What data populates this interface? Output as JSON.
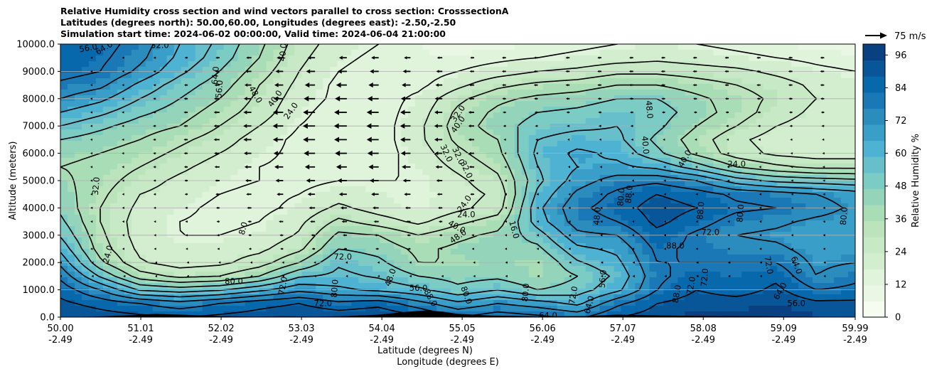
{
  "title_lines": [
    "Relative Humidity cross section and wind vectors parallel to cross section: CrosssectionA",
    "Latitudes (degrees north): 50.00,60.00, Longitudes (degrees east): -2.50,-2.50",
    "Simulation start time: 2024-06-02 00:00:00, Valid time: 2024-06-04 21:00:00"
  ],
  "quiver_key_label": "75 m/s",
  "colors": {
    "rh_levels": [
      "#f7fcf0",
      "#eaf7e4",
      "#e0f3db",
      "#d3eece",
      "#c8e9c5",
      "#bbe4bc",
      "#a8ddb5",
      "#94d4bb",
      "#7bccc4",
      "#66bfca",
      "#4eb3d3",
      "#3a9fc8",
      "#2b8cbe",
      "#1978b5",
      "#0868ac",
      "#085697",
      "#084081"
    ],
    "contour": "#000000",
    "terrain": "#000000",
    "grid": "#b0b0b0"
  },
  "chart_data": {
    "type": "heatmap",
    "subtype": "filled contour cross-section with wind vectors and line contours",
    "xlabel_line1": "Latitude (degrees N)",
    "xlabel_line2": "Longitude (degrees E)",
    "ylabel": "Altitude (meters)",
    "ylim": [
      0,
      10000
    ],
    "xlim": [
      50.0,
      59.99
    ],
    "y_ticks": [
      "0.0",
      "1000.0",
      "2000.0",
      "3000.0",
      "4000.0",
      "5000.0",
      "6000.0",
      "7000.0",
      "8000.0",
      "9000.0",
      "10000.0"
    ],
    "y_tick_values": [
      0,
      1000,
      2000,
      3000,
      4000,
      5000,
      6000,
      7000,
      8000,
      9000,
      10000
    ],
    "x_ticks": [
      {
        "lat": "50.00",
        "lon": "-2.49",
        "value": 50.0
      },
      {
        "lat": "51.01",
        "lon": "-2.49",
        "value": 51.01
      },
      {
        "lat": "52.02",
        "lon": "-2.49",
        "value": 52.02
      },
      {
        "lat": "53.03",
        "lon": "-2.49",
        "value": 53.03
      },
      {
        "lat": "54.04",
        "lon": "-2.49",
        "value": 54.04
      },
      {
        "lat": "55.05",
        "lon": "-2.49",
        "value": 55.05
      },
      {
        "lat": "56.06",
        "lon": "-2.49",
        "value": 56.06
      },
      {
        "lat": "57.07",
        "lon": "-2.49",
        "value": 57.07
      },
      {
        "lat": "58.08",
        "lon": "-2.49",
        "value": 58.08
      },
      {
        "lat": "59.09",
        "lon": "-2.49",
        "value": 59.09
      },
      {
        "lat": "59.99",
        "lon": "-2.49",
        "value": 59.99
      }
    ],
    "grid": "horizontal only",
    "colorbar": {
      "label": "Relative Humidity %",
      "range": [
        0,
        100
      ],
      "ticks": [
        "0",
        "12",
        "24",
        "36",
        "48",
        "60",
        "72",
        "84",
        "96"
      ],
      "tick_values": [
        0,
        12,
        24,
        36,
        48,
        60,
        72,
        84,
        96
      ],
      "levels": 17
    },
    "rh_field": {
      "columns": [
        "50.0",
        "50.5",
        "51.0",
        "51.5",
        "52.0",
        "52.5",
        "53.0",
        "53.5",
        "54.0",
        "54.5",
        "55.0",
        "55.5",
        "56.0",
        "56.5",
        "57.0",
        "57.5",
        "58.0",
        "58.5",
        "59.0",
        "59.5",
        "60.0"
      ],
      "altitudes": [
        0,
        500,
        1000,
        1500,
        2000,
        2500,
        3000,
        3500,
        4000,
        4500,
        5000,
        5500,
        6000,
        6500,
        7000,
        7500,
        8000,
        8500,
        9000,
        9500,
        10000
      ],
      "values": [
        [
          95,
          92,
          90,
          88,
          90,
          92,
          95,
          94,
          96,
          90,
          80,
          85,
          82,
          78,
          88,
          92,
          96,
          96,
          97,
          95,
          95
        ],
        [
          90,
          85,
          80,
          75,
          80,
          85,
          88,
          82,
          85,
          75,
          66,
          72,
          68,
          62,
          78,
          88,
          92,
          92,
          94,
          90,
          90
        ],
        [
          85,
          72,
          55,
          52,
          55,
          62,
          70,
          66,
          62,
          58,
          50,
          56,
          48,
          52,
          62,
          80,
          88,
          84,
          90,
          80,
          82
        ],
        [
          78,
          55,
          36,
          30,
          32,
          40,
          55,
          58,
          55,
          48,
          45,
          46,
          40,
          48,
          58,
          78,
          84,
          82,
          86,
          72,
          78
        ],
        [
          70,
          42,
          25,
          20,
          22,
          28,
          40,
          55,
          50,
          40,
          40,
          42,
          40,
          55,
          62,
          80,
          80,
          80,
          80,
          70,
          72
        ],
        [
          62,
          36,
          22,
          18,
          20,
          22,
          30,
          48,
          45,
          38,
          42,
          45,
          46,
          62,
          66,
          82,
          78,
          75,
          74,
          68,
          70
        ],
        [
          55,
          34,
          20,
          16,
          16,
          18,
          25,
          42,
          40,
          32,
          38,
          42,
          52,
          70,
          72,
          86,
          78,
          72,
          70,
          66,
          68
        ],
        [
          50,
          32,
          20,
          16,
          14,
          16,
          22,
          34,
          28,
          22,
          30,
          36,
          60,
          76,
          80,
          90,
          84,
          76,
          74,
          70,
          68
        ],
        [
          46,
          32,
          22,
          18,
          14,
          14,
          18,
          26,
          20,
          16,
          22,
          28,
          62,
          78,
          84,
          92,
          88,
          82,
          80,
          76,
          70
        ],
        [
          44,
          34,
          24,
          20,
          16,
          14,
          16,
          20,
          18,
          16,
          20,
          26,
          58,
          74,
          82,
          88,
          84,
          78,
          76,
          72,
          68
        ],
        [
          42,
          36,
          28,
          22,
          18,
          16,
          14,
          16,
          16,
          16,
          22,
          30,
          54,
          68,
          76,
          78,
          72,
          60,
          54,
          52,
          50
        ],
        [
          40,
          38,
          32,
          26,
          20,
          16,
          14,
          14,
          14,
          18,
          26,
          34,
          56,
          64,
          66,
          62,
          52,
          40,
          34,
          30,
          30
        ],
        [
          42,
          40,
          36,
          30,
          24,
          18,
          14,
          12,
          12,
          20,
          30,
          38,
          58,
          66,
          62,
          50,
          38,
          28,
          22,
          20,
          20
        ],
        [
          48,
          44,
          40,
          34,
          28,
          20,
          14,
          12,
          12,
          22,
          34,
          40,
          56,
          60,
          58,
          46,
          36,
          26,
          20,
          18,
          18
        ],
        [
          56,
          50,
          44,
          40,
          32,
          24,
          16,
          12,
          12,
          22,
          36,
          44,
          52,
          54,
          56,
          50,
          40,
          32,
          24,
          20,
          18
        ],
        [
          64,
          58,
          50,
          44,
          36,
          28,
          18,
          12,
          12,
          20,
          34,
          42,
          48,
          50,
          54,
          52,
          44,
          36,
          28,
          22,
          20
        ],
        [
          72,
          66,
          56,
          48,
          40,
          30,
          20,
          14,
          12,
          18,
          30,
          38,
          42,
          44,
          48,
          48,
          42,
          36,
          30,
          24,
          20
        ],
        [
          78,
          74,
          62,
          52,
          44,
          32,
          22,
          14,
          12,
          14,
          22,
          30,
          34,
          36,
          40,
          40,
          36,
          32,
          28,
          22,
          18
        ],
        [
          84,
          80,
          70,
          58,
          48,
          36,
          24,
          16,
          12,
          12,
          16,
          20,
          24,
          26,
          30,
          30,
          28,
          26,
          22,
          18,
          16
        ],
        [
          86,
          82,
          74,
          62,
          52,
          40,
          26,
          18,
          14,
          12,
          12,
          14,
          16,
          18,
          20,
          22,
          20,
          18,
          16,
          14,
          12
        ],
        [
          88,
          84,
          76,
          64,
          54,
          42,
          28,
          20,
          16,
          12,
          10,
          10,
          12,
          14,
          16,
          18,
          16,
          14,
          12,
          10,
          10
        ]
      ]
    },
    "contour_labels": [
      {
        "text": "56.0",
        "lat": 50.35,
        "alt": 9850,
        "rot": -10
      },
      {
        "text": "64.0",
        "lat": 50.55,
        "alt": 9850,
        "rot": -30
      },
      {
        "text": "32.0",
        "lat": 51.25,
        "alt": 9950,
        "rot": 0
      },
      {
        "text": "56.0",
        "lat": 52.0,
        "alt": 8350,
        "rot": -85
      },
      {
        "text": "64.0",
        "lat": 51.95,
        "alt": 8850,
        "rot": -85
      },
      {
        "text": "48.0",
        "lat": 52.45,
        "alt": 8150,
        "rot": 60
      },
      {
        "text": "40.0",
        "lat": 52.7,
        "alt": 8000,
        "rot": -55
      },
      {
        "text": "24.0",
        "lat": 52.9,
        "alt": 7550,
        "rot": -55
      },
      {
        "text": "40.0",
        "lat": 52.8,
        "alt": 9700,
        "rot": -85
      },
      {
        "text": "32.0",
        "lat": 50.45,
        "alt": 4800,
        "rot": -85
      },
      {
        "text": "8.0",
        "lat": 52.3,
        "alt": 3250,
        "rot": -75
      },
      {
        "text": "24.0",
        "lat": 50.6,
        "alt": 2300,
        "rot": -75
      },
      {
        "text": "72.0",
        "lat": 53.55,
        "alt": 2200,
        "rot": 0
      },
      {
        "text": "32.0",
        "lat": 55.0,
        "alt": 7450,
        "rot": -55
      },
      {
        "text": "40.0",
        "lat": 55.0,
        "alt": 7050,
        "rot": -55
      },
      {
        "text": "32.0",
        "lat": 54.85,
        "alt": 6000,
        "rot": 65
      },
      {
        "text": "32.0",
        "lat": 55.0,
        "alt": 5900,
        "rot": 65
      },
      {
        "text": "32.0",
        "lat": 55.1,
        "alt": 5400,
        "rot": 65
      },
      {
        "text": "24.0",
        "lat": 55.08,
        "alt": 4150,
        "rot": -55
      },
      {
        "text": "24.0",
        "lat": 55.1,
        "alt": 3750,
        "rot": 0
      },
      {
        "text": "40.0",
        "lat": 54.98,
        "alt": 3300,
        "rot": 30
      },
      {
        "text": "48.0",
        "lat": 55.0,
        "alt": 2950,
        "rot": -35
      },
      {
        "text": "16.0",
        "lat": 55.7,
        "alt": 3200,
        "rot": 75
      },
      {
        "text": "48.0",
        "lat": 56.75,
        "alt": 3700,
        "rot": -85
      },
      {
        "text": "48.0",
        "lat": 57.4,
        "alt": 7600,
        "rot": 85
      },
      {
        "text": "40.0",
        "lat": 57.35,
        "alt": 6300,
        "rot": 85
      },
      {
        "text": "40.0",
        "lat": 57.85,
        "alt": 5800,
        "rot": -60
      },
      {
        "text": "24.0",
        "lat": 58.5,
        "alt": 5600,
        "rot": 0
      },
      {
        "text": "80.0",
        "lat": 57.05,
        "alt": 4400,
        "rot": -85
      },
      {
        "text": "88.0",
        "lat": 57.15,
        "alt": 4500,
        "rot": -85
      },
      {
        "text": "88.0",
        "lat": 58.05,
        "alt": 3900,
        "rot": -85
      },
      {
        "text": "80.0",
        "lat": 58.55,
        "alt": 3800,
        "rot": -85
      },
      {
        "text": "72.0",
        "lat": 58.17,
        "alt": 3100,
        "rot": 0
      },
      {
        "text": "88.0",
        "lat": 57.73,
        "alt": 2600,
        "rot": 0
      },
      {
        "text": "80.0",
        "lat": 59.85,
        "alt": 3700,
        "rot": -85
      },
      {
        "text": "72.0",
        "lat": 58.9,
        "alt": 1900,
        "rot": 80
      },
      {
        "text": "64.0",
        "lat": 59.25,
        "alt": 1900,
        "rot": 70
      },
      {
        "text": "72.0",
        "lat": 58.1,
        "alt": 1450,
        "rot": -85
      },
      {
        "text": "56.0",
        "lat": 56.82,
        "alt": 1400,
        "rot": -85
      },
      {
        "text": "56.0",
        "lat": 54.5,
        "alt": 1050,
        "rot": 0
      },
      {
        "text": "48.0",
        "lat": 54.15,
        "alt": 1450,
        "rot": -70
      },
      {
        "text": "80.0",
        "lat": 52.18,
        "alt": 1300,
        "rot": 0
      },
      {
        "text": "72.0",
        "lat": 53.3,
        "alt": 500,
        "rot": 0
      },
      {
        "text": "64.0",
        "lat": 56.13,
        "alt": 50,
        "rot": 0
      },
      {
        "text": "56.0",
        "lat": 59.25,
        "alt": 500,
        "rot": 0
      },
      {
        "text": "72.0",
        "lat": 52.8,
        "alt": 1150,
        "rot": -80
      },
      {
        "text": "80.0",
        "lat": 53.45,
        "alt": 1050,
        "rot": -85
      },
      {
        "text": "72.0",
        "lat": 56.45,
        "alt": 800,
        "rot": -80
      },
      {
        "text": "64.0",
        "lat": 56.65,
        "alt": 450,
        "rot": -75
      },
      {
        "text": "72.0",
        "lat": 57.93,
        "alt": 1150,
        "rot": -80
      },
      {
        "text": "88.0",
        "lat": 57.75,
        "alt": 850,
        "rot": -80
      },
      {
        "text": "64.0",
        "lat": 59.05,
        "alt": 950,
        "rot": -60
      },
      {
        "text": "80.0",
        "lat": 55.85,
        "alt": 900,
        "rot": -85
      },
      {
        "text": "80.0",
        "lat": 55.1,
        "alt": 800,
        "rot": 70
      },
      {
        "text": "88.0",
        "lat": 54.65,
        "alt": 700,
        "rot": 60
      }
    ],
    "wind_arrows": {
      "description": "westward (leftward) arrows parallel to cross section; longest near 53-54.5N aloft, small arrows in lower levels and east",
      "key_magnitude": 75,
      "lats": [
        50.0,
        50.4,
        50.8,
        51.2,
        51.6,
        52.0,
        52.4,
        52.8,
        53.2,
        53.6,
        54.0,
        54.4,
        54.8,
        55.2,
        55.6,
        56.0,
        56.4,
        56.8,
        57.2,
        57.6,
        58.0,
        58.4,
        58.8,
        59.2,
        59.6
      ],
      "alts": [
        1500,
        2000,
        2500,
        3000,
        3500,
        4000,
        4500,
        5000,
        5500,
        6000,
        6500,
        7000,
        7500,
        8000,
        8500,
        9000,
        9500
      ],
      "peak_speed": 38
    },
    "terrain_profile": {
      "lats": [
        50.0,
        50.4,
        50.8,
        51.2,
        51.6,
        52.0,
        52.4,
        52.8,
        53.2,
        53.6,
        54.0,
        54.3,
        54.6,
        54.8,
        55.0,
        55.4,
        56.0,
        56.6,
        57.0,
        57.6,
        58.2,
        58.8,
        59.4,
        59.99
      ],
      "alt": [
        0,
        20,
        60,
        120,
        80,
        40,
        20,
        30,
        20,
        40,
        90,
        180,
        250,
        200,
        120,
        60,
        30,
        40,
        90,
        60,
        40,
        30,
        20,
        10
      ]
    }
  }
}
